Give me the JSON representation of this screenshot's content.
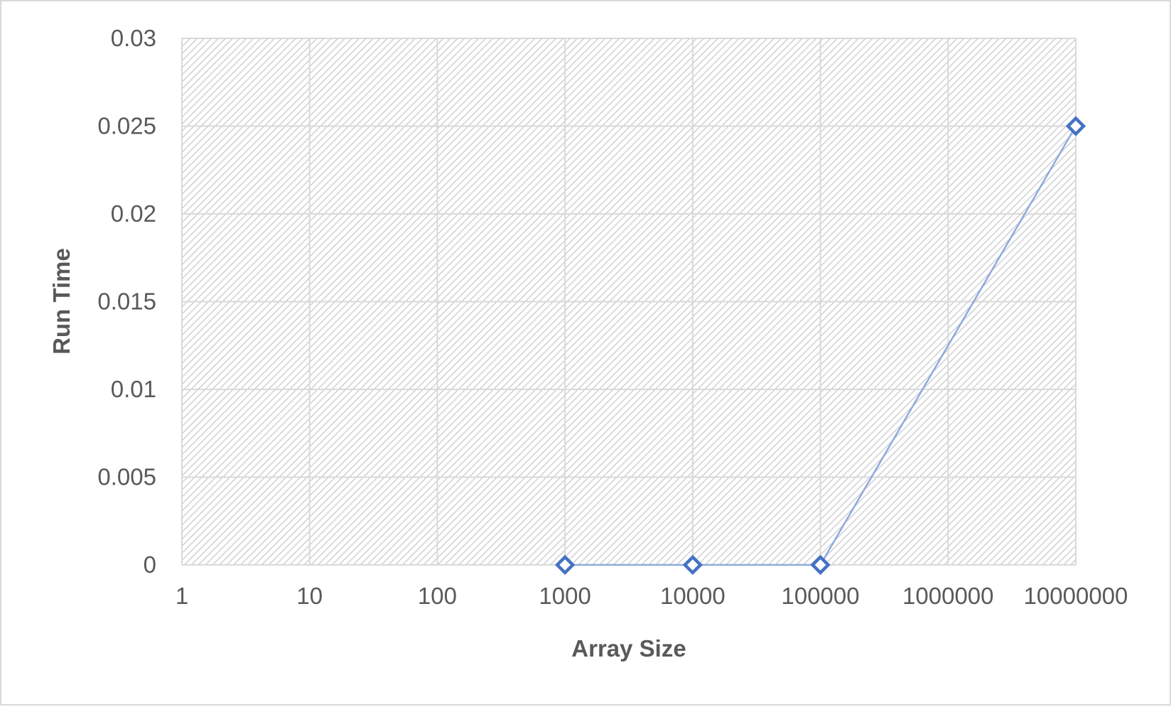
{
  "chart_data": {
    "type": "scatter",
    "title": "",
    "xlabel": "Array Size",
    "ylabel": "Run Time",
    "x_scale": "log",
    "xlim": [
      1,
      10000000
    ],
    "ylim": [
      0,
      0.03
    ],
    "x_ticks": [
      "1",
      "10",
      "100",
      "1000",
      "10000",
      "100000",
      "1000000",
      "10000000"
    ],
    "y_ticks": [
      "0",
      "0.005",
      "0.01",
      "0.015",
      "0.02",
      "0.025",
      "0.03"
    ],
    "grid": true,
    "legend": "none",
    "series": [
      {
        "color": "#4472c4",
        "line_color": "#8faadc",
        "marker": "diamond-open",
        "x": [
          1000,
          10000,
          100000,
          10000000
        ],
        "y": [
          0,
          0,
          0,
          0.025
        ]
      }
    ]
  }
}
